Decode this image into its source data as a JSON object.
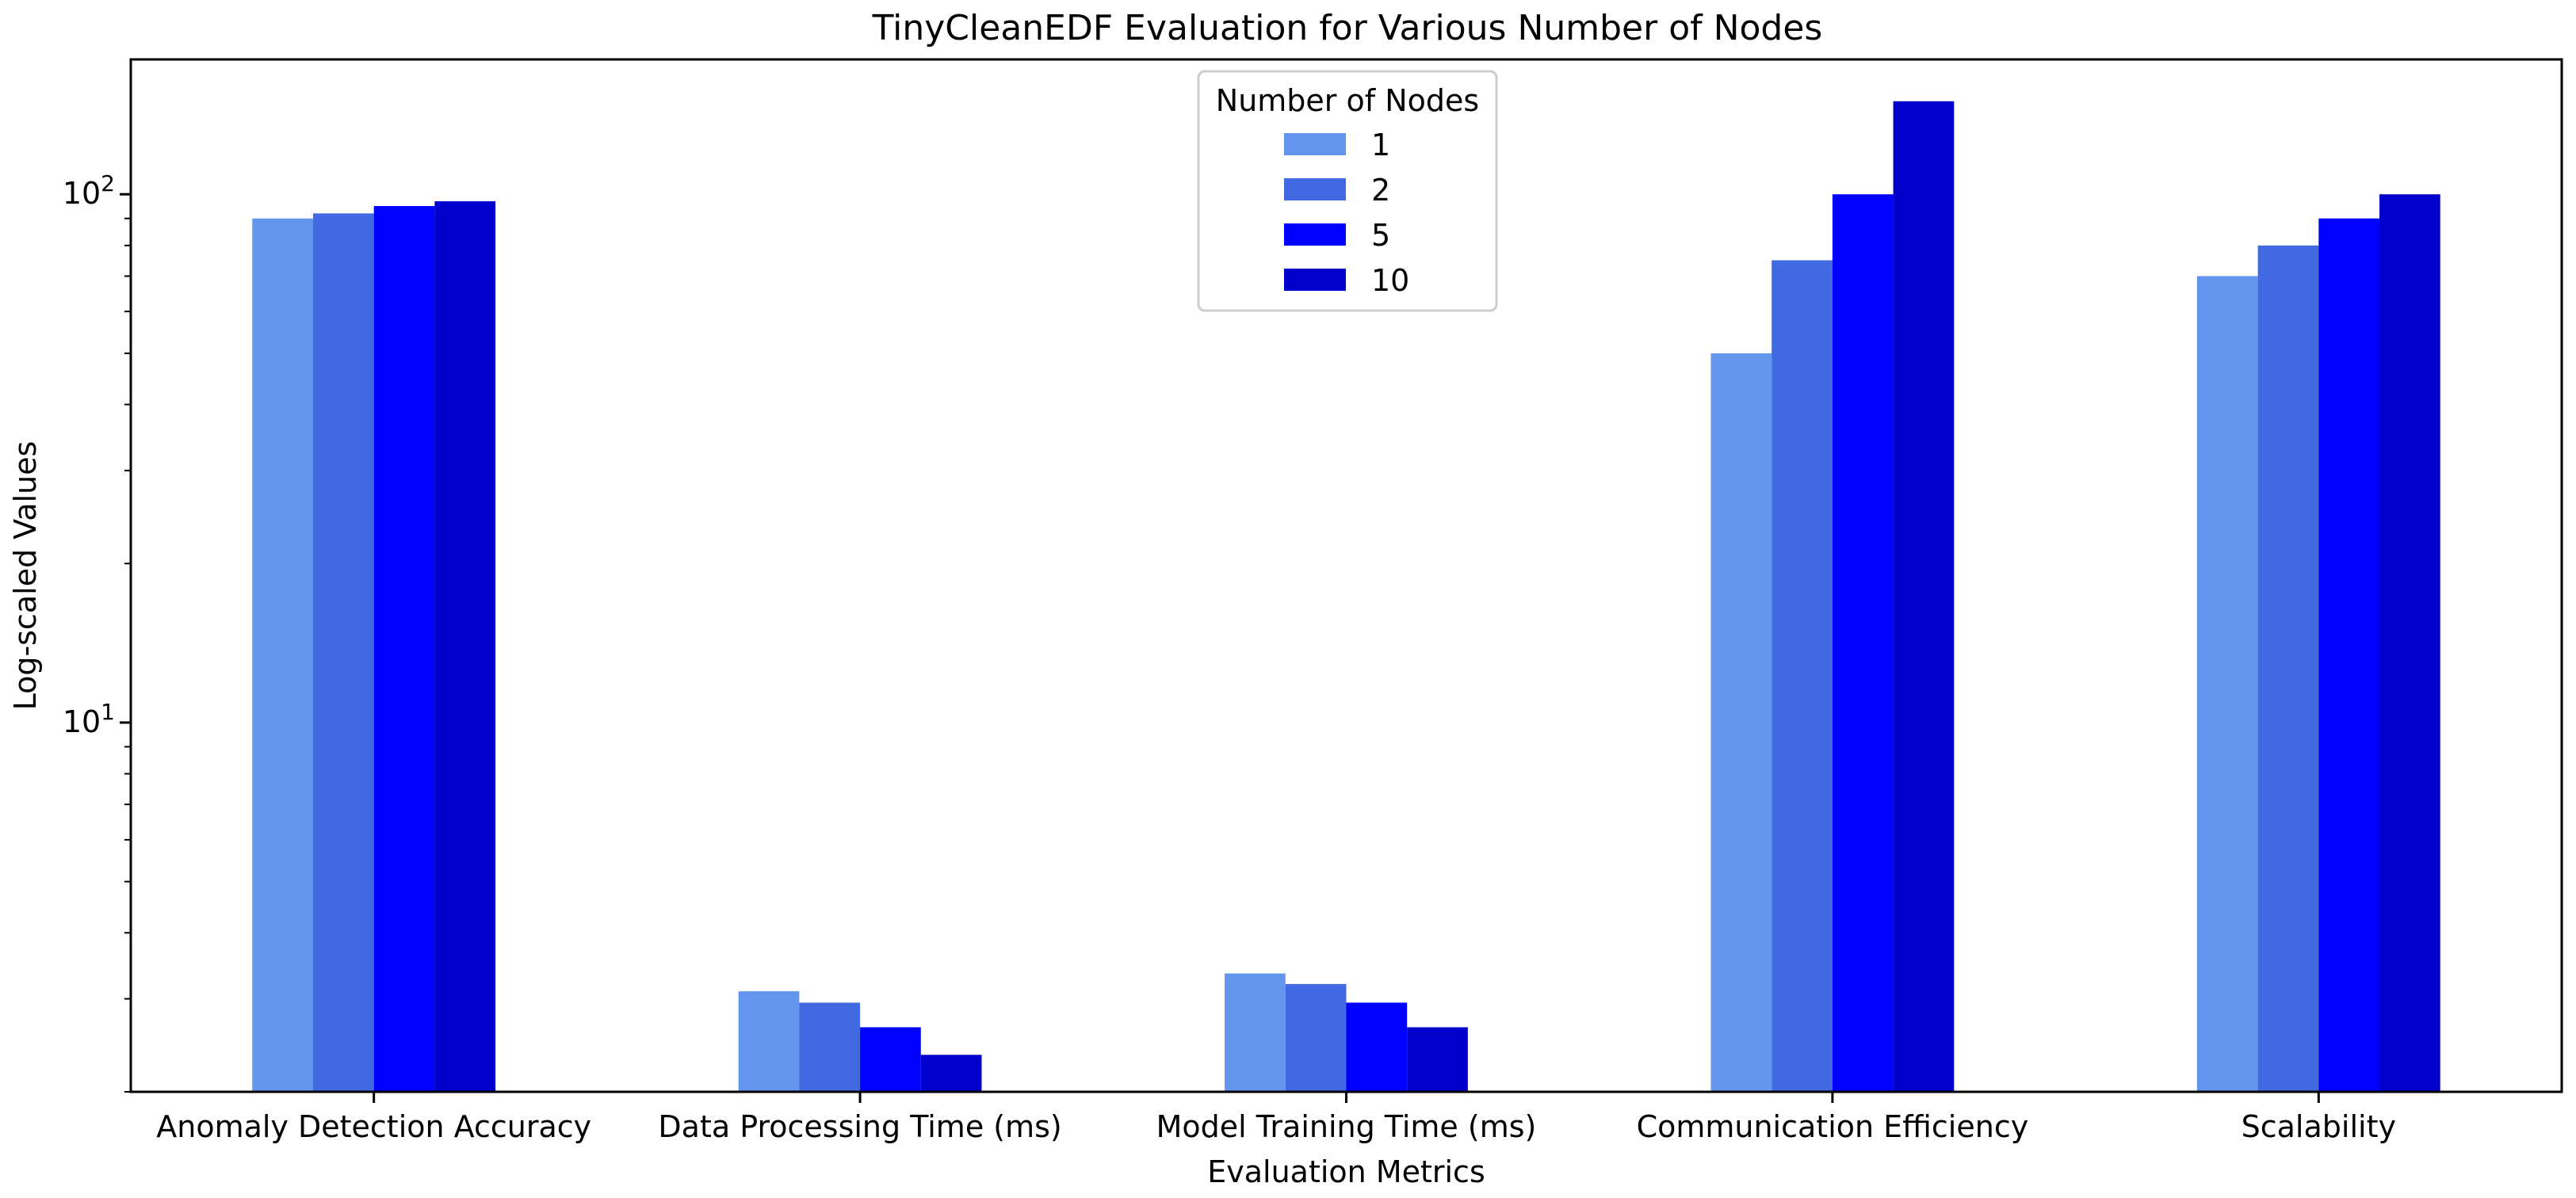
{
  "chart_data": {
    "type": "bar",
    "title": "TinyCleanEDF Evaluation for Various Number of Nodes",
    "xlabel": "Evaluation Metrics",
    "ylabel": "Log-scaled Values",
    "yscale": "log",
    "ylim": [
      2.0,
      180
    ],
    "yticks": [
      {
        "value": 10,
        "base": "10",
        "exp": "1"
      },
      {
        "value": 100,
        "base": "10",
        "exp": "2"
      }
    ],
    "categories": [
      "Anomaly Detection Accuracy",
      "Data Processing Time (ms)",
      "Model Training Time (ms)",
      "Communication Efficiency",
      "Scalability"
    ],
    "legend": {
      "title": "Number of Nodes",
      "position": "top-center"
    },
    "series": [
      {
        "name": "1",
        "color": "#6495ED",
        "values": [
          90,
          3.1,
          3.35,
          50,
          70
        ]
      },
      {
        "name": "2",
        "color": "#4169E1",
        "values": [
          92,
          2.95,
          3.2,
          75,
          80
        ]
      },
      {
        "name": "5",
        "color": "#0000FF",
        "values": [
          95,
          2.65,
          2.95,
          100,
          90
        ]
      },
      {
        "name": "10",
        "color": "#0000CD",
        "values": [
          97,
          2.35,
          2.65,
          150,
          100
        ]
      }
    ]
  }
}
